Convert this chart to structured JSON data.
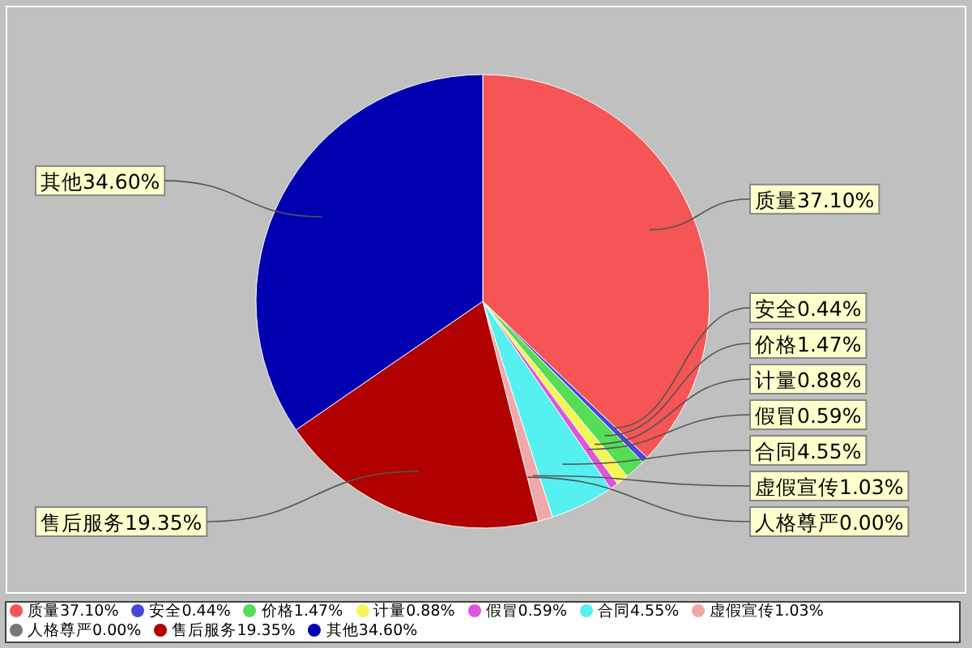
{
  "chart_data": {
    "type": "pie",
    "categories": [
      "质量",
      "安全",
      "价格",
      "计量",
      "假冒",
      "合同",
      "虚假宣传",
      "人格尊严",
      "售后服务",
      "其他"
    ],
    "values": [
      37.1,
      0.44,
      1.47,
      0.88,
      0.59,
      4.55,
      1.03,
      0.0,
      19.35,
      34.6
    ],
    "colors": [
      "#f55555",
      "#4848d8",
      "#55dd55",
      "#f5f555",
      "#dd55dd",
      "#55f0f0",
      "#f0a8a8",
      "#777777",
      "#b00000",
      "#0000b0"
    ],
    "value_labels": [
      "37.10%",
      "0.44%",
      "1.47%",
      "0.88%",
      "0.59%",
      "4.55%",
      "1.03%",
      "0.00%",
      "19.35%",
      "34.60%"
    ],
    "legend": "bottom"
  }
}
